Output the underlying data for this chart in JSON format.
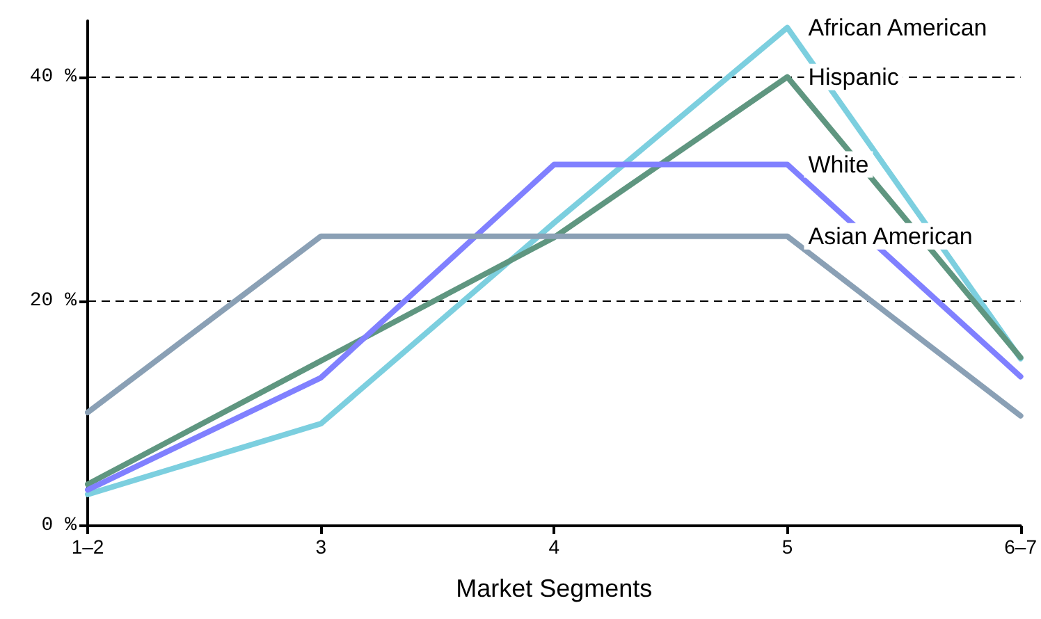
{
  "chart_data": {
    "type": "line",
    "xlabel": "Market Segments",
    "categories": [
      "1–2",
      "3",
      "4",
      "5",
      "6–7"
    ],
    "ylim": [
      0,
      45
    ],
    "yticks": [
      {
        "value": 0,
        "label": "0 %"
      },
      {
        "value": 20,
        "label": "20 %"
      },
      {
        "value": 40,
        "label": "40 %"
      }
    ],
    "grid": "y",
    "marker": "none",
    "line_style": "solid",
    "series": [
      {
        "name": "African American",
        "color": "#7ccfdf",
        "values": [
          2.8,
          9.1,
          27,
          44.4,
          14.9
        ]
      },
      {
        "name": "Hispanic",
        "color": "#5f9680",
        "values": [
          3.7,
          14.7,
          25.7,
          40,
          15
        ]
      },
      {
        "name": "White",
        "color": "#8080ff",
        "values": [
          3.2,
          13.2,
          32.2,
          32.2,
          13.3
        ]
      },
      {
        "name": "Asian American",
        "color": "#8aa0b5",
        "values": [
          10.1,
          25.8,
          25.8,
          25.8,
          9.8
        ]
      }
    ]
  }
}
